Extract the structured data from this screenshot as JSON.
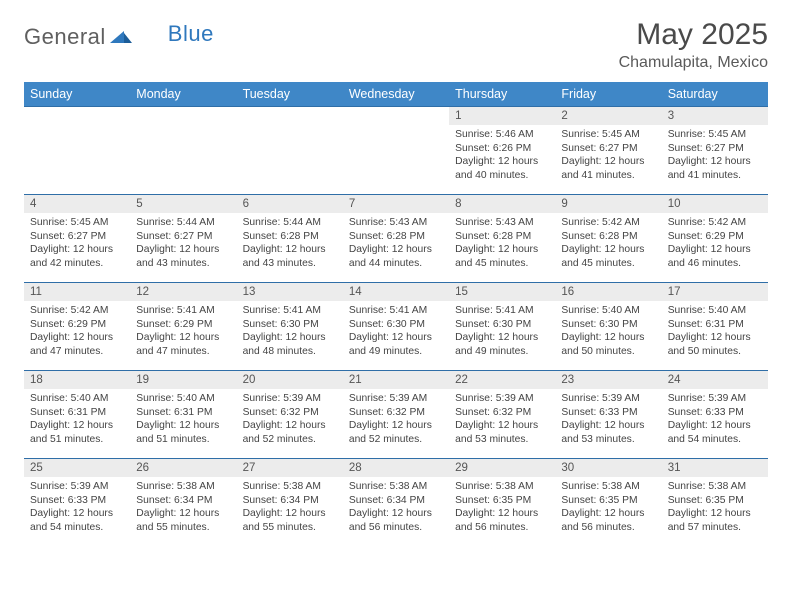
{
  "brand": {
    "part1": "General",
    "part2": "Blue"
  },
  "title": "May 2025",
  "location": "Chamulapita, Mexico",
  "colors": {
    "header_bg": "#3f87c7",
    "row_border": "#2f6ea7",
    "daynum_bg": "#ececec",
    "brand_gray": "#5f5f5f",
    "brand_blue": "#2f78bd"
  },
  "dow": [
    "Sunday",
    "Monday",
    "Tuesday",
    "Wednesday",
    "Thursday",
    "Friday",
    "Saturday"
  ],
  "weeks": [
    [
      {
        "n": "",
        "lines": [
          "",
          "",
          "",
          ""
        ],
        "empty": true
      },
      {
        "n": "",
        "lines": [
          "",
          "",
          "",
          ""
        ],
        "empty": true
      },
      {
        "n": "",
        "lines": [
          "",
          "",
          "",
          ""
        ],
        "empty": true
      },
      {
        "n": "",
        "lines": [
          "",
          "",
          "",
          ""
        ],
        "empty": true
      },
      {
        "n": "1",
        "lines": [
          "Sunrise: 5:46 AM",
          "Sunset: 6:26 PM",
          "Daylight: 12 hours",
          "and 40 minutes."
        ]
      },
      {
        "n": "2",
        "lines": [
          "Sunrise: 5:45 AM",
          "Sunset: 6:27 PM",
          "Daylight: 12 hours",
          "and 41 minutes."
        ]
      },
      {
        "n": "3",
        "lines": [
          "Sunrise: 5:45 AM",
          "Sunset: 6:27 PM",
          "Daylight: 12 hours",
          "and 41 minutes."
        ]
      }
    ],
    [
      {
        "n": "4",
        "lines": [
          "Sunrise: 5:45 AM",
          "Sunset: 6:27 PM",
          "Daylight: 12 hours",
          "and 42 minutes."
        ]
      },
      {
        "n": "5",
        "lines": [
          "Sunrise: 5:44 AM",
          "Sunset: 6:27 PM",
          "Daylight: 12 hours",
          "and 43 minutes."
        ]
      },
      {
        "n": "6",
        "lines": [
          "Sunrise: 5:44 AM",
          "Sunset: 6:28 PM",
          "Daylight: 12 hours",
          "and 43 minutes."
        ]
      },
      {
        "n": "7",
        "lines": [
          "Sunrise: 5:43 AM",
          "Sunset: 6:28 PM",
          "Daylight: 12 hours",
          "and 44 minutes."
        ]
      },
      {
        "n": "8",
        "lines": [
          "Sunrise: 5:43 AM",
          "Sunset: 6:28 PM",
          "Daylight: 12 hours",
          "and 45 minutes."
        ]
      },
      {
        "n": "9",
        "lines": [
          "Sunrise: 5:42 AM",
          "Sunset: 6:28 PM",
          "Daylight: 12 hours",
          "and 45 minutes."
        ]
      },
      {
        "n": "10",
        "lines": [
          "Sunrise: 5:42 AM",
          "Sunset: 6:29 PM",
          "Daylight: 12 hours",
          "and 46 minutes."
        ]
      }
    ],
    [
      {
        "n": "11",
        "lines": [
          "Sunrise: 5:42 AM",
          "Sunset: 6:29 PM",
          "Daylight: 12 hours",
          "and 47 minutes."
        ]
      },
      {
        "n": "12",
        "lines": [
          "Sunrise: 5:41 AM",
          "Sunset: 6:29 PM",
          "Daylight: 12 hours",
          "and 47 minutes."
        ]
      },
      {
        "n": "13",
        "lines": [
          "Sunrise: 5:41 AM",
          "Sunset: 6:30 PM",
          "Daylight: 12 hours",
          "and 48 minutes."
        ]
      },
      {
        "n": "14",
        "lines": [
          "Sunrise: 5:41 AM",
          "Sunset: 6:30 PM",
          "Daylight: 12 hours",
          "and 49 minutes."
        ]
      },
      {
        "n": "15",
        "lines": [
          "Sunrise: 5:41 AM",
          "Sunset: 6:30 PM",
          "Daylight: 12 hours",
          "and 49 minutes."
        ]
      },
      {
        "n": "16",
        "lines": [
          "Sunrise: 5:40 AM",
          "Sunset: 6:30 PM",
          "Daylight: 12 hours",
          "and 50 minutes."
        ]
      },
      {
        "n": "17",
        "lines": [
          "Sunrise: 5:40 AM",
          "Sunset: 6:31 PM",
          "Daylight: 12 hours",
          "and 50 minutes."
        ]
      }
    ],
    [
      {
        "n": "18",
        "lines": [
          "Sunrise: 5:40 AM",
          "Sunset: 6:31 PM",
          "Daylight: 12 hours",
          "and 51 minutes."
        ]
      },
      {
        "n": "19",
        "lines": [
          "Sunrise: 5:40 AM",
          "Sunset: 6:31 PM",
          "Daylight: 12 hours",
          "and 51 minutes."
        ]
      },
      {
        "n": "20",
        "lines": [
          "Sunrise: 5:39 AM",
          "Sunset: 6:32 PM",
          "Daylight: 12 hours",
          "and 52 minutes."
        ]
      },
      {
        "n": "21",
        "lines": [
          "Sunrise: 5:39 AM",
          "Sunset: 6:32 PM",
          "Daylight: 12 hours",
          "and 52 minutes."
        ]
      },
      {
        "n": "22",
        "lines": [
          "Sunrise: 5:39 AM",
          "Sunset: 6:32 PM",
          "Daylight: 12 hours",
          "and 53 minutes."
        ]
      },
      {
        "n": "23",
        "lines": [
          "Sunrise: 5:39 AM",
          "Sunset: 6:33 PM",
          "Daylight: 12 hours",
          "and 53 minutes."
        ]
      },
      {
        "n": "24",
        "lines": [
          "Sunrise: 5:39 AM",
          "Sunset: 6:33 PM",
          "Daylight: 12 hours",
          "and 54 minutes."
        ]
      }
    ],
    [
      {
        "n": "25",
        "lines": [
          "Sunrise: 5:39 AM",
          "Sunset: 6:33 PM",
          "Daylight: 12 hours",
          "and 54 minutes."
        ]
      },
      {
        "n": "26",
        "lines": [
          "Sunrise: 5:38 AM",
          "Sunset: 6:34 PM",
          "Daylight: 12 hours",
          "and 55 minutes."
        ]
      },
      {
        "n": "27",
        "lines": [
          "Sunrise: 5:38 AM",
          "Sunset: 6:34 PM",
          "Daylight: 12 hours",
          "and 55 minutes."
        ]
      },
      {
        "n": "28",
        "lines": [
          "Sunrise: 5:38 AM",
          "Sunset: 6:34 PM",
          "Daylight: 12 hours",
          "and 56 minutes."
        ]
      },
      {
        "n": "29",
        "lines": [
          "Sunrise: 5:38 AM",
          "Sunset: 6:35 PM",
          "Daylight: 12 hours",
          "and 56 minutes."
        ]
      },
      {
        "n": "30",
        "lines": [
          "Sunrise: 5:38 AM",
          "Sunset: 6:35 PM",
          "Daylight: 12 hours",
          "and 56 minutes."
        ]
      },
      {
        "n": "31",
        "lines": [
          "Sunrise: 5:38 AM",
          "Sunset: 6:35 PM",
          "Daylight: 12 hours",
          "and 57 minutes."
        ]
      }
    ]
  ]
}
